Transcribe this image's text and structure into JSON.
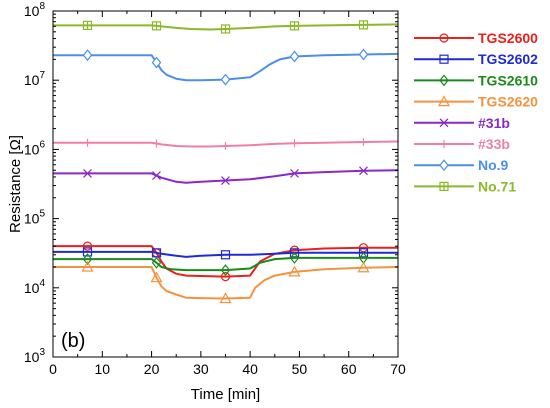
{
  "chart_data": {
    "type": "line",
    "panel_label": "(b)",
    "xlabel": "Time [min]",
    "ylabel": "Resistance [Ω]",
    "xlim": [
      0,
      70
    ],
    "ylim": [
      1000,
      100000000
    ],
    "yscale": "log",
    "x_ticks": [
      0,
      10,
      20,
      30,
      40,
      50,
      60,
      70
    ],
    "x_tick_labels": [
      "0",
      "10",
      "20",
      "30",
      "40",
      "50",
      "60",
      "70"
    ],
    "y_ticks": [
      1000,
      10000,
      100000,
      1000000,
      10000000,
      100000000
    ],
    "y_tick_labels": [
      {
        "base": "10",
        "exp": "3"
      },
      {
        "base": "10",
        "exp": "4"
      },
      {
        "base": "10",
        "exp": "5"
      },
      {
        "base": "10",
        "exp": "6"
      },
      {
        "base": "10",
        "exp": "7"
      },
      {
        "base": "10",
        "exp": "8"
      }
    ],
    "grid": false,
    "legend_position": "right",
    "marker_x": [
      7,
      21,
      35,
      49,
      63
    ],
    "series": [
      {
        "name": "TGS2600",
        "color": "#e8211c",
        "marker": "circle",
        "x": [
          0,
          20,
          21,
          22,
          23,
          25,
          27,
          30,
          35,
          40,
          42,
          45,
          49,
          55,
          63,
          70
        ],
        "y": [
          40000,
          40000,
          32000,
          24000,
          19000,
          16000,
          15000,
          14800,
          14500,
          15000,
          24000,
          31000,
          35000,
          37000,
          38000,
          38000
        ]
      },
      {
        "name": "TGS2602",
        "color": "#1f2ad4",
        "marker": "square",
        "x": [
          0,
          20,
          22,
          25,
          27,
          30,
          35,
          40,
          45,
          49,
          55,
          63,
          70
        ],
        "y": [
          33000,
          33000,
          31000,
          29000,
          28000,
          29000,
          30000,
          30000,
          31000,
          32000,
          32000,
          32000,
          32000
        ]
      },
      {
        "name": "TGS2610",
        "color": "#1a8a1a",
        "marker": "diamond",
        "x": [
          0,
          20,
          21,
          22,
          24,
          27,
          30,
          35,
          40,
          42,
          45,
          49,
          55,
          63,
          70
        ],
        "y": [
          26000,
          26000,
          23000,
          20000,
          18500,
          18000,
          18000,
          18000,
          19000,
          23000,
          26000,
          27000,
          27000,
          27000,
          27000
        ]
      },
      {
        "name": "TGS2620",
        "color": "#f5923e",
        "marker": "triangle",
        "x": [
          0,
          20,
          21,
          22,
          23,
          25,
          27,
          30,
          35,
          40,
          41,
          43,
          45,
          49,
          55,
          63,
          70
        ],
        "y": [
          20000,
          20000,
          14000,
          10500,
          9000,
          8000,
          7200,
          7100,
          7000,
          7200,
          10000,
          13000,
          15000,
          17000,
          18500,
          19500,
          20000
        ]
      },
      {
        "name": "#31b",
        "color": "#8a28c8",
        "marker": "x",
        "x": [
          0,
          20,
          22,
          25,
          27,
          30,
          35,
          40,
          45,
          49,
          55,
          63,
          70
        ],
        "y": [
          450000,
          450000,
          390000,
          340000,
          330000,
          340000,
          355000,
          370000,
          410000,
          450000,
          470000,
          490000,
          500000
        ]
      },
      {
        "name": "#33b",
        "color": "#ef7fa6",
        "marker": "plus",
        "x": [
          0,
          20,
          22,
          25,
          28,
          32,
          35,
          40,
          45,
          49,
          55,
          63,
          70
        ],
        "y": [
          1250000,
          1250000,
          1180000,
          1120000,
          1100000,
          1100000,
          1120000,
          1150000,
          1200000,
          1230000,
          1250000,
          1280000,
          1300000
        ]
      },
      {
        "name": "No.9",
        "color": "#4a90e8",
        "marker": "diamond-open",
        "x": [
          0,
          20,
          21,
          22,
          23,
          25,
          27,
          30,
          35,
          40,
          42,
          44,
          46,
          49,
          55,
          63,
          70
        ],
        "y": [
          23000000,
          23000000,
          18000000,
          14000000,
          12000000,
          10500000,
          10000000,
          10000000,
          10200000,
          11000000,
          13500000,
          17000000,
          20000000,
          22000000,
          23000000,
          23500000,
          24000000
        ]
      },
      {
        "name": "No.71",
        "color": "#8cb82a",
        "marker": "square-cross",
        "x": [
          0,
          20,
          22,
          25,
          28,
          32,
          35,
          40,
          45,
          49,
          55,
          63,
          70
        ],
        "y": [
          62000000,
          62000000,
          60000000,
          57000000,
          55000000,
          54000000,
          55000000,
          57000000,
          60000000,
          61000000,
          62000000,
          63000000,
          64000000
        ]
      }
    ]
  }
}
